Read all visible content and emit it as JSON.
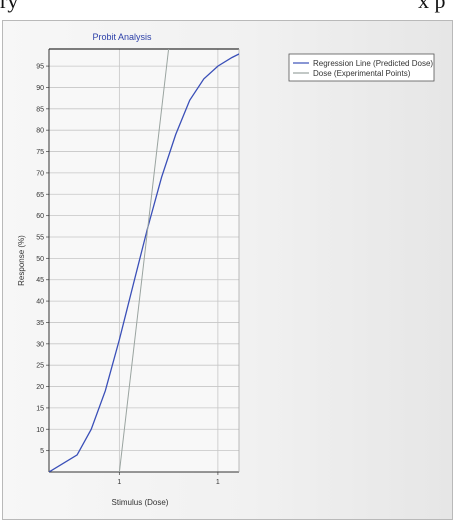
{
  "caption_fragment": {
    "left": "ry",
    "right": "x p"
  },
  "chart_data": {
    "type": "line",
    "title": "Probit Analysis",
    "xlabel": "Stimulus (Dose)",
    "ylabel": "Response (%)",
    "xlim": [
      0,
      1.35
    ],
    "ylim": [
      0,
      99
    ],
    "x_ticks": [
      {
        "value": 0.5,
        "label": "1"
      },
      {
        "value": 1.2,
        "label": "1"
      }
    ],
    "y_ticks": [
      5,
      10,
      15,
      20,
      25,
      30,
      35,
      40,
      45,
      50,
      55,
      60,
      65,
      70,
      75,
      80,
      85,
      90,
      95
    ],
    "grid": true,
    "legend_position": "right",
    "series": [
      {
        "name": "Regression Line (Predicted Dose)",
        "color": "#3a4fb8",
        "x": [
          0,
          0.2,
          0.3,
          0.4,
          0.5,
          0.6,
          0.7,
          0.8,
          0.9,
          1.0,
          1.1,
          1.2,
          1.3,
          1.42
        ],
        "y": [
          0,
          4,
          10,
          19,
          31,
          44,
          57,
          69,
          79,
          87,
          92,
          95,
          97,
          99
        ]
      },
      {
        "name": "Dose (Experimental Points)",
        "color": "#9aa4a0",
        "x": [
          0.5,
          0.85
        ],
        "y": [
          0,
          99
        ]
      }
    ]
  }
}
